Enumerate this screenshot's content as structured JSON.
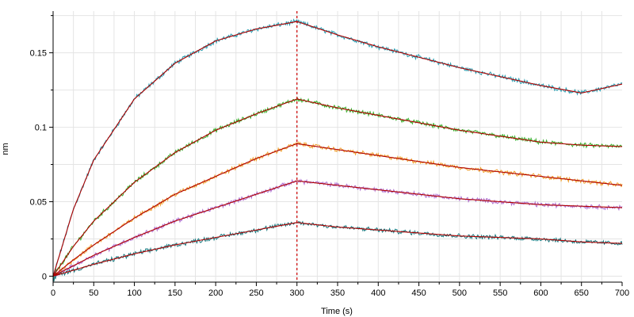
{
  "chart_data": {
    "type": "line",
    "xlabel": "Time (s)",
    "ylabel": "nm",
    "xlim": [
      0,
      700
    ],
    "ylim": [
      -0.004,
      0.178
    ],
    "x_ticks": [
      0,
      50,
      100,
      150,
      200,
      250,
      300,
      350,
      400,
      450,
      500,
      550,
      600,
      650,
      700
    ],
    "y_ticks": [
      0,
      0.05,
      0.1,
      0.15
    ],
    "y_tick_labels": [
      "0",
      "0.05",
      "0.1",
      "0.15"
    ],
    "grid": true,
    "association_end": 300,
    "marker_line": {
      "x": 300,
      "color": "#cc0000",
      "style": "dotted"
    },
    "fit_color": "#b00000",
    "series": [
      {
        "color": "#2a9db0",
        "x": [
          0,
          25,
          50,
          100,
          150,
          200,
          250,
          300,
          350,
          400,
          450,
          500,
          550,
          600,
          650,
          700
        ],
        "values": [
          0,
          0.045,
          0.078,
          0.119,
          0.143,
          0.158,
          0.166,
          0.171,
          0.162,
          0.154,
          0.147,
          0.14,
          0.134,
          0.128,
          0.123,
          0.129
        ]
      },
      {
        "color": "#3cb030",
        "x": [
          0,
          25,
          50,
          100,
          150,
          200,
          250,
          300,
          350,
          400,
          450,
          500,
          550,
          600,
          650,
          700
        ],
        "values": [
          0,
          0.02,
          0.037,
          0.063,
          0.083,
          0.098,
          0.109,
          0.119,
          0.113,
          0.108,
          0.103,
          0.098,
          0.094,
          0.09,
          0.088,
          0.087
        ]
      },
      {
        "color": "#f0a030",
        "x": [
          0,
          25,
          50,
          100,
          150,
          200,
          250,
          300,
          350,
          400,
          450,
          500,
          550,
          600,
          650,
          700
        ],
        "values": [
          0,
          0.011,
          0.021,
          0.039,
          0.055,
          0.067,
          0.079,
          0.089,
          0.085,
          0.081,
          0.077,
          0.073,
          0.07,
          0.067,
          0.064,
          0.061
        ]
      },
      {
        "color": "#b070d0",
        "x": [
          0,
          25,
          50,
          100,
          150,
          200,
          250,
          300,
          350,
          400,
          450,
          500,
          550,
          600,
          650,
          700
        ],
        "values": [
          0,
          0.007,
          0.014,
          0.026,
          0.037,
          0.046,
          0.055,
          0.064,
          0.061,
          0.058,
          0.055,
          0.052,
          0.05,
          0.048,
          0.047,
          0.046
        ]
      },
      {
        "color": "#1a7a80",
        "x": [
          0,
          25,
          50,
          100,
          150,
          200,
          250,
          300,
          350,
          400,
          450,
          500,
          550,
          600,
          650,
          700
        ],
        "values": [
          0,
          0.004,
          0.008,
          0.015,
          0.021,
          0.026,
          0.031,
          0.036,
          0.033,
          0.031,
          0.029,
          0.027,
          0.026,
          0.025,
          0.023,
          0.022
        ]
      }
    ]
  }
}
